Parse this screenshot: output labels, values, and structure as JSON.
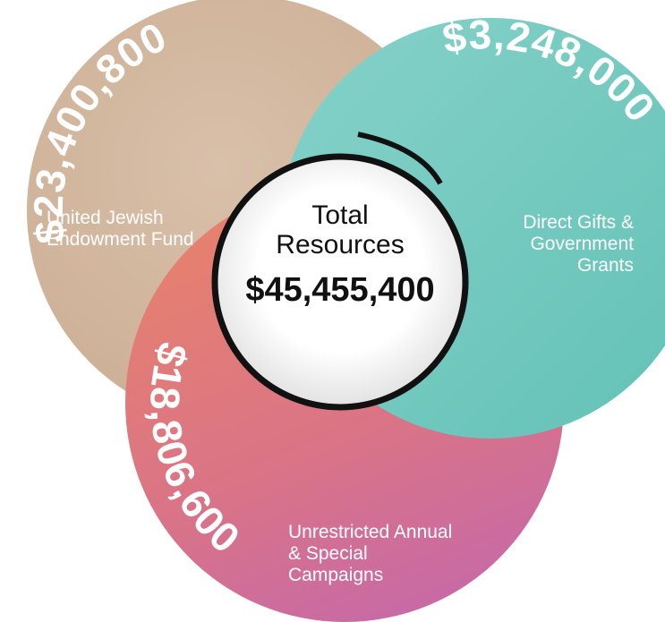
{
  "center": {
    "title": "Total Resources",
    "amount": "$45,455,400"
  },
  "nodes": [
    {
      "amount": "$23,400,800",
      "label": "United Jewish Endowment Fund"
    },
    {
      "amount": "$3,248,000",
      "label": "Direct Gifts & Government Grants"
    },
    {
      "amount": "$18,806,600",
      "label": "Unrestricted Annual & Special Campaigns"
    }
  ]
}
